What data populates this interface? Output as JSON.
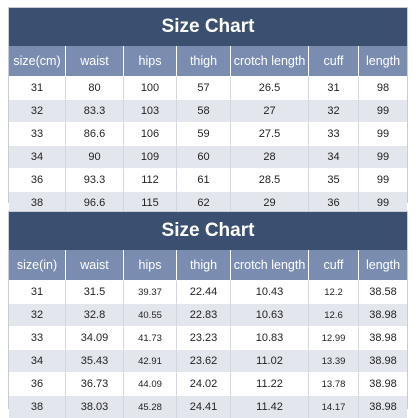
{
  "charts": [
    {
      "id": "cm",
      "title": "Size Chart",
      "headers": [
        "size(cm)",
        "waist",
        "hips",
        "thigh",
        "crotch length",
        "cuff",
        "length"
      ],
      "rows": [
        [
          "31",
          "80",
          "100",
          "57",
          "26.5",
          "31",
          "98"
        ],
        [
          "32",
          "83.3",
          "103",
          "58",
          "27",
          "32",
          "99"
        ],
        [
          "33",
          "86.6",
          "106",
          "59",
          "27.5",
          "33",
          "99"
        ],
        [
          "34",
          "90",
          "109",
          "60",
          "28",
          "34",
          "99"
        ],
        [
          "36",
          "93.3",
          "112",
          "61",
          "28.5",
          "35",
          "99"
        ],
        [
          "38",
          "96.6",
          "115",
          "62",
          "29",
          "36",
          "99"
        ]
      ]
    },
    {
      "id": "in",
      "title": "Size Chart",
      "headers": [
        "size(in)",
        "waist",
        "hips",
        "thigh",
        "crotch length",
        "cuff",
        "length"
      ],
      "rows": [
        [
          "31",
          "31.5",
          "39.37",
          "22.44",
          "10.43",
          "12.2",
          "38.58"
        ],
        [
          "32",
          "32.8",
          "40.55",
          "22.83",
          "10.63",
          "12.6",
          "38.98"
        ],
        [
          "33",
          "34.09",
          "41.73",
          "23.23",
          "10.83",
          "12.99",
          "38.98"
        ],
        [
          "34",
          "35.43",
          "42.91",
          "23.62",
          "11.02",
          "13.39",
          "38.98"
        ],
        [
          "36",
          "36.73",
          "44.09",
          "24.02",
          "11.22",
          "13.78",
          "38.98"
        ],
        [
          "38",
          "38.03",
          "45.28",
          "24.41",
          "11.42",
          "14.17",
          "38.98"
        ]
      ]
    }
  ]
}
